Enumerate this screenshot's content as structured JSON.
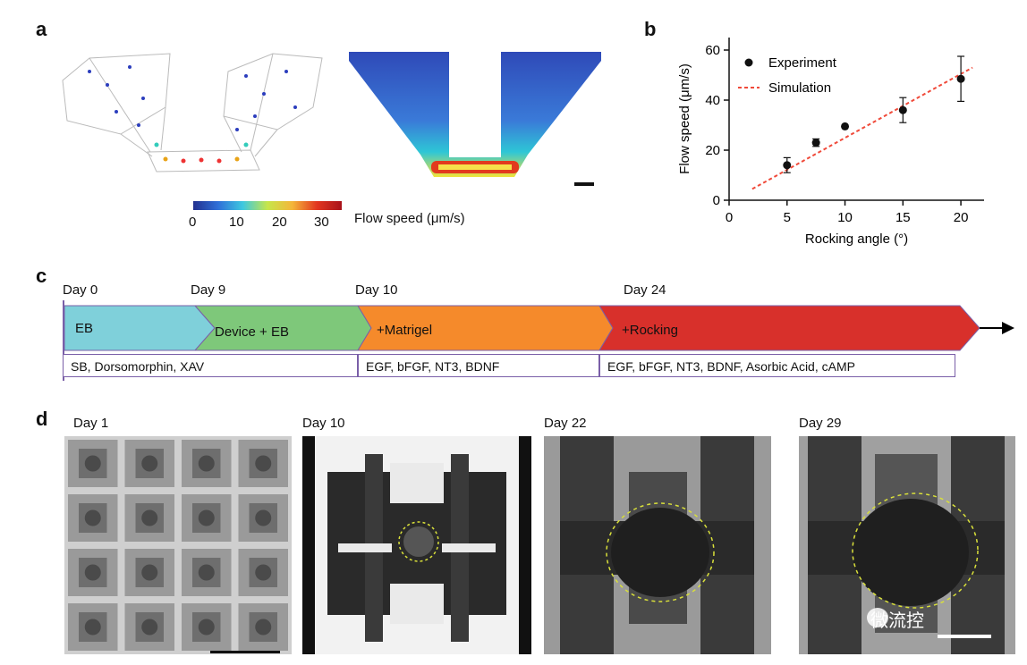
{
  "panels": {
    "a": {
      "letter": "a",
      "colorbar_ticks": [
        "0",
        "10",
        "20",
        "30"
      ],
      "colorbar_label": "Flow speed (μm/s)"
    },
    "b": {
      "letter": "b"
    },
    "c": {
      "letter": "c",
      "days": [
        "Day 0",
        "Day 9",
        "Day 10",
        "Day 24"
      ],
      "stages": [
        {
          "label": "EB",
          "color": "#7fd0da"
        },
        {
          "label": "Device + EB",
          "color": "#7ec87a"
        },
        {
          "label": "+Matrigel",
          "color": "#f58a2b"
        },
        {
          "label": "+Rocking",
          "color": "#d8302b"
        }
      ],
      "media": [
        "SB, Dorsomorphin, XAV",
        "EGF, bFGF, NT3, BDNF",
        "EGF, bFGF, NT3, BDNF, Asorbic Acid, cAMP"
      ]
    },
    "d": {
      "letter": "d",
      "days": [
        "Day 1",
        "Day 10",
        "Day 22",
        "Day 29"
      ],
      "watermark": "微流控"
    }
  },
  "chart_data": {
    "type": "scatter",
    "xlabel": "Rocking angle (°)",
    "ylabel": "Flow speed (μm/s)",
    "xlim": [
      0,
      22
    ],
    "ylim": [
      0,
      65
    ],
    "xticks": [
      0,
      5,
      10,
      15,
      20
    ],
    "yticks": [
      0,
      20,
      40,
      60
    ],
    "legend_position": "top-left",
    "series": [
      {
        "name": "Experiment",
        "kind": "points-with-error",
        "color": "#111111",
        "x": [
          5,
          7.5,
          10,
          15,
          20
        ],
        "y": [
          14,
          23,
          29.5,
          36,
          48.5
        ],
        "err": [
          3,
          1.5,
          0,
          5,
          9
        ]
      },
      {
        "name": "Simulation",
        "kind": "dashed-line",
        "color": "#f04a3a",
        "x": [
          2,
          21
        ],
        "y": [
          4.5,
          53
        ]
      }
    ]
  }
}
